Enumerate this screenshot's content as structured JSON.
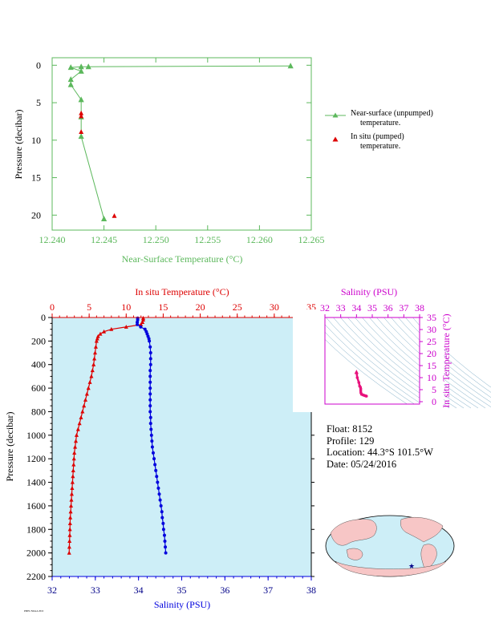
{
  "top_chart": {
    "xlabel": "Near-Surface Temperature (°C)",
    "ylabel": "Pressure (decibar)",
    "xticks": [
      "12.240",
      "12.245",
      "12.250",
      "12.255",
      "12.260",
      "12.265"
    ],
    "yticks": [
      "0",
      "5",
      "10",
      "15",
      "20"
    ],
    "legend": [
      {
        "line1": "Near-surface (unpumped)",
        "line2": "temperature."
      },
      {
        "line1": "In situ (pumped)",
        "line2": "temperature."
      }
    ]
  },
  "main_chart": {
    "top_xlabel": "In situ Temperature (°C)",
    "bottom_xlabel": "Salinity (PSU)",
    "ylabel": "Pressure (decibar)",
    "temp_ticks": [
      "0",
      "5",
      "10",
      "15",
      "20",
      "25",
      "30",
      "35"
    ],
    "sal_ticks": [
      "32",
      "33",
      "34",
      "35",
      "36",
      "37",
      "38"
    ],
    "p_ticks": [
      "0",
      "200",
      "400",
      "600",
      "800",
      "1000",
      "1200",
      "1400",
      "1600",
      "1800",
      "2000",
      "2200"
    ]
  },
  "ts_chart": {
    "xlabel": "Salinity (PSU)",
    "ylabel": "In situ Temperature (°C)",
    "sal_ticks": [
      "32",
      "33",
      "34",
      "35",
      "36",
      "37",
      "38"
    ],
    "temp_ticks": [
      "0",
      "5",
      "10",
      "15",
      "20",
      "25",
      "30",
      "35"
    ]
  },
  "info": {
    "float": "Float:  8152",
    "profile": "Profile:  129",
    "location": "Location:  44.3°S  101.5°W",
    "date": "Date:  05/24/2016"
  },
  "footer": "PMEL/NOAA 2016",
  "colors": {
    "green": "#5cb85c",
    "red": "#dd0000",
    "blue": "#0000dd",
    "magenta": "#cc00cc",
    "navy": "#000088",
    "ocean": "#cdeef7"
  },
  "chart_data": [
    {
      "type": "line",
      "title": "",
      "xlabel": "Near-Surface Temperature (°C)",
      "ylabel": "Pressure (decibar)",
      "xlim": [
        12.24,
        12.265
      ],
      "ylim": [
        22,
        -1
      ],
      "series": [
        {
          "name": "Near-surface (unpumped) temperature.",
          "points": [
            [
              12.263,
              0.1
            ],
            [
              12.2435,
              0.2
            ],
            [
              12.2428,
              0.2
            ],
            [
              12.2418,
              0.3
            ],
            [
              12.2428,
              0.8
            ],
            [
              12.2418,
              1.9
            ],
            [
              12.2418,
              2.6
            ],
            [
              12.2428,
              4.6
            ],
            [
              12.2428,
              6.9
            ],
            [
              12.2428,
              9.5
            ],
            [
              12.245,
              20.5
            ]
          ]
        },
        {
          "name": "In situ (pumped) temperature.",
          "points": [
            [
              12.2428,
              6.4
            ],
            [
              12.2428,
              6.8
            ],
            [
              12.2428,
              8.9
            ],
            [
              12.246,
              20.1
            ]
          ]
        }
      ]
    },
    {
      "type": "line",
      "title": "",
      "ylabel": "Pressure (decibar)",
      "ylim": [
        2200,
        0
      ],
      "temperature_axis": {
        "label": "In situ Temperature (°C)",
        "range": [
          0,
          35
        ]
      },
      "salinity_axis": {
        "label": "Salinity (PSU)",
        "range": [
          32,
          38
        ]
      },
      "temperature": {
        "pressure": [
          5,
          20,
          40,
          60,
          80,
          100,
          120,
          140,
          160,
          180,
          200,
          250,
          300,
          350,
          400,
          450,
          500,
          550,
          600,
          650,
          700,
          750,
          800,
          850,
          900,
          950,
          1000,
          1050,
          1100,
          1150,
          1200,
          1250,
          1300,
          1350,
          1400,
          1450,
          1500,
          1550,
          1600,
          1650,
          1700,
          1750,
          1800,
          1850,
          1900,
          1950,
          2000
        ],
        "values": [
          12.3,
          12.3,
          12.2,
          12.0,
          10.0,
          8.0,
          7.0,
          6.5,
          6.2,
          6.1,
          6.0,
          5.9,
          5.8,
          5.7,
          5.6,
          5.45,
          5.3,
          5.1,
          4.9,
          4.7,
          4.5,
          4.3,
          4.1,
          3.9,
          3.7,
          3.5,
          3.3,
          3.2,
          3.1,
          3.0,
          2.95,
          2.9,
          2.85,
          2.8,
          2.75,
          2.7,
          2.65,
          2.6,
          2.55,
          2.5,
          2.45,
          2.42,
          2.4,
          2.38,
          2.35,
          2.32,
          2.3
        ]
      },
      "salinity": {
        "pressure": [
          5,
          20,
          40,
          60,
          80,
          100,
          120,
          140,
          160,
          180,
          200,
          250,
          300,
          350,
          400,
          450,
          500,
          550,
          600,
          650,
          700,
          750,
          800,
          850,
          900,
          950,
          1000,
          1050,
          1100,
          1150,
          1200,
          1250,
          1300,
          1350,
          1400,
          1450,
          1500,
          1550,
          1600,
          1650,
          1700,
          1750,
          1800,
          1850,
          1900,
          1950,
          2000
        ],
        "values": [
          33.98,
          33.98,
          33.97,
          33.97,
          34.05,
          34.15,
          34.18,
          34.2,
          34.22,
          34.24,
          34.25,
          34.27,
          34.28,
          34.28,
          34.28,
          34.27,
          34.27,
          34.27,
          34.27,
          34.27,
          34.27,
          34.27,
          34.27,
          34.28,
          34.28,
          34.29,
          34.3,
          34.31,
          34.32,
          34.34,
          34.36,
          34.38,
          34.4,
          34.42,
          34.44,
          34.46,
          34.48,
          34.5,
          34.52,
          34.54,
          34.55,
          34.57,
          34.58,
          34.6,
          34.61,
          34.62,
          34.63
        ]
      }
    },
    {
      "type": "scatter",
      "title": "",
      "xlabel": "Salinity (PSU)",
      "ylabel": "In situ Temperature (°C)",
      "xlim": [
        32,
        38
      ],
      "ylim": [
        -1,
        35
      ],
      "points": [
        [
          34.0,
          12.3
        ],
        [
          34.05,
          10.0
        ],
        [
          34.15,
          8.0
        ],
        [
          34.2,
          6.5
        ],
        [
          34.25,
          6.0
        ],
        [
          34.27,
          5.3
        ],
        [
          34.27,
          4.5
        ],
        [
          34.28,
          3.7
        ],
        [
          34.32,
          3.1
        ],
        [
          34.4,
          2.85
        ],
        [
          34.5,
          2.6
        ],
        [
          34.58,
          2.4
        ],
        [
          34.63,
          2.3
        ]
      ]
    }
  ]
}
